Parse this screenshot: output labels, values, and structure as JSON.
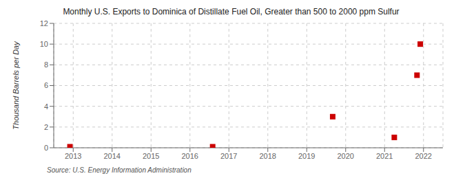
{
  "chart_data": {
    "type": "scatter",
    "title": "Monthly U.S. Exports to Dominica of Distillate Fuel Oil, Greater than 500 to 2000 ppm Sulfur",
    "ylabel": "Thousand Barrels per Day",
    "source": "Source: U.S. Energy Information Administration",
    "x": [
      2012.917,
      2016.583,
      2019.667,
      2021.25,
      2021.833,
      2021.917
    ],
    "values": [
      0.1,
      0.1,
      3.0,
      1.0,
      7.0,
      10.0
    ],
    "color": "#cc0000",
    "marker": "square",
    "xlim": [
      2012.5,
      2022.5
    ],
    "ylim": [
      0,
      12
    ],
    "xticks": [
      2013,
      2014,
      2015,
      2016,
      2017,
      2018,
      2019,
      2020,
      2021,
      2022
    ],
    "yticks": [
      0,
      2,
      4,
      6,
      8,
      10,
      12
    ],
    "grid": true
  }
}
